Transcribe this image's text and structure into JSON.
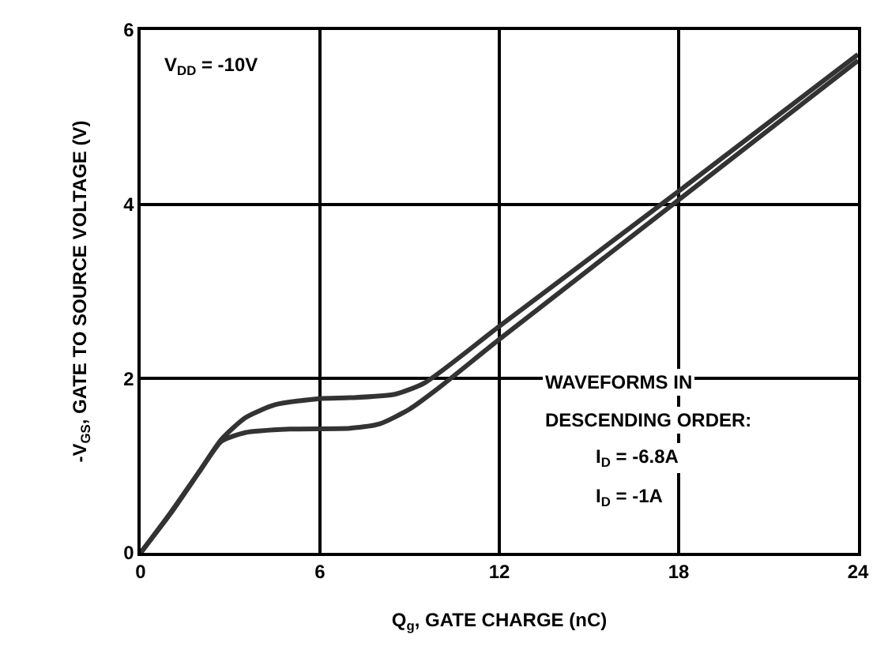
{
  "chart_data": {
    "type": "line",
    "xlabel": "Q$_{g}$, GATE CHARGE (nC)",
    "ylabel": "-V$_{GS}$, GATE TO SOURCE VOLTAGE (V)",
    "xlim": [
      0,
      24
    ],
    "xticks": [
      0,
      6,
      12,
      18,
      24
    ],
    "ylim": [
      0,
      6
    ],
    "yticks": [
      0,
      2,
      4,
      6
    ],
    "grid": true,
    "line_style": "solid",
    "annotations": [
      "V$_{DD}$ = -10V",
      "WAVEFORMS IN",
      "DESCENDING ORDER:",
      "I$_{D}$ = -6.8A",
      "I$_{D}$ = -1A"
    ],
    "series": [
      {
        "color": "#333333",
        "x": [
          0,
          1,
          2,
          2.7,
          3.5,
          4.5,
          6,
          7,
          8.5,
          9.5,
          12,
          18,
          24
        ],
        "values": [
          0,
          0.45,
          0.95,
          1.3,
          1.55,
          1.7,
          1.77,
          1.78,
          1.82,
          1.95,
          2.6,
          4.15,
          5.72
        ]
      },
      {
        "color": "#333333",
        "x": [
          0,
          1,
          2,
          2.7,
          3.5,
          5,
          7,
          8,
          9,
          10,
          12,
          18,
          24
        ],
        "values": [
          0,
          0.46,
          0.95,
          1.28,
          1.38,
          1.42,
          1.43,
          1.48,
          1.65,
          1.9,
          2.45,
          4.05,
          5.65
        ]
      }
    ]
  }
}
